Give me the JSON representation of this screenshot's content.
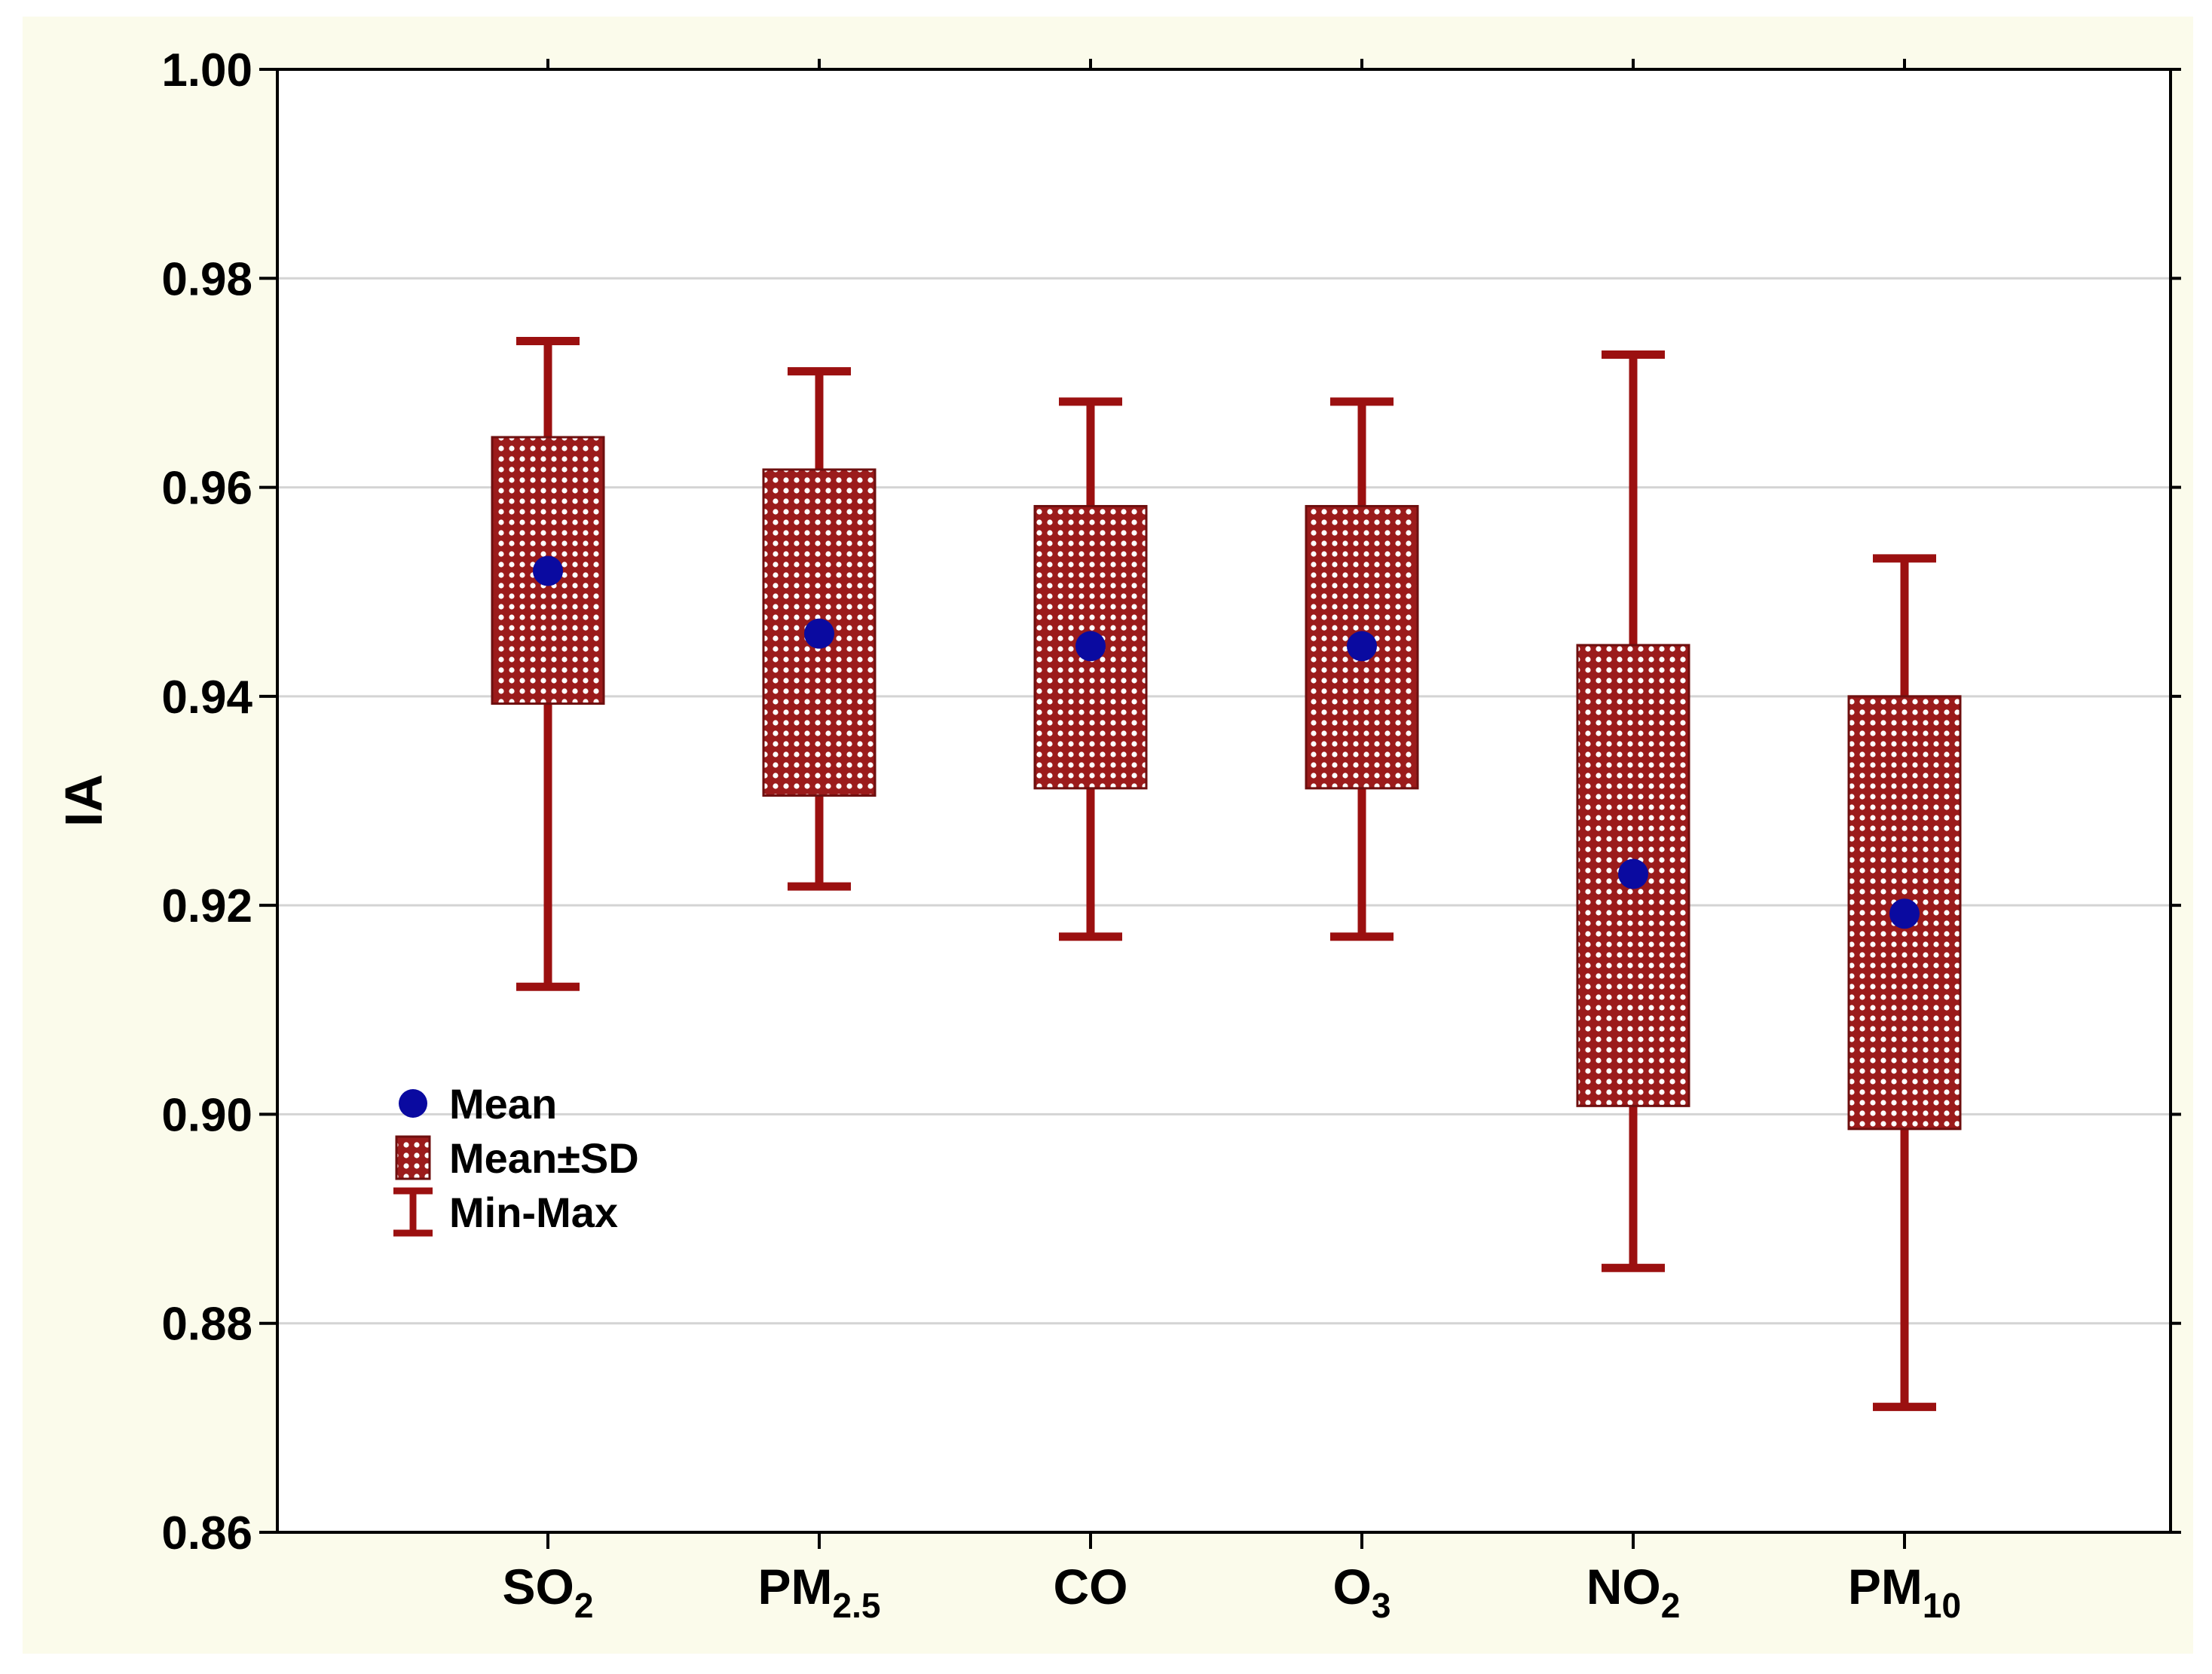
{
  "chart_data": {
    "type": "box",
    "title": "",
    "xlabel": "",
    "ylabel": "IA",
    "ylim": [
      0.86,
      1.0
    ],
    "yticks": [
      "0.86",
      "0.88",
      "0.90",
      "0.92",
      "0.94",
      "0.96",
      "0.98",
      "1.00"
    ],
    "ytick_values": [
      0.86,
      0.88,
      0.9,
      0.92,
      0.94,
      0.96,
      0.98,
      1.0
    ],
    "grid": true,
    "legend_position": "left",
    "categories": [
      {
        "base": "SO",
        "sub": "2"
      },
      {
        "base": "PM",
        "sub": "2.5"
      },
      {
        "base": "CO",
        "sub": ""
      },
      {
        "base": "O",
        "sub": "3"
      },
      {
        "base": "NO",
        "sub": "2"
      },
      {
        "base": "PM",
        "sub": "10"
      }
    ],
    "series": [
      {
        "mean": 0.952,
        "sd_low": 0.9393,
        "sd_high": 0.9648,
        "min": 0.9122,
        "max": 0.974
      },
      {
        "mean": 0.946,
        "sd_low": 0.9305,
        "sd_high": 0.9617,
        "min": 0.9218,
        "max": 0.9711
      },
      {
        "mean": 0.9448,
        "sd_low": 0.9312,
        "sd_high": 0.9582,
        "min": 0.917,
        "max": 0.9682
      },
      {
        "mean": 0.9448,
        "sd_low": 0.9312,
        "sd_high": 0.9582,
        "min": 0.917,
        "max": 0.9682
      },
      {
        "mean": 0.923,
        "sd_low": 0.9008,
        "sd_high": 0.9449,
        "min": 0.8853,
        "max": 0.9727
      },
      {
        "mean": 0.9192,
        "sd_low": 0.8986,
        "sd_high": 0.94,
        "min": 0.872,
        "max": 0.9532
      }
    ],
    "legend": [
      {
        "key": "mean",
        "label": "Mean"
      },
      {
        "key": "box",
        "label": "Mean±SD"
      },
      {
        "key": "whisker",
        "label": "Min-Max"
      }
    ],
    "colors": {
      "background": "#fbfbeb",
      "plot_bg": "#ffffff",
      "box": "#9b1b1b",
      "box_dots": "#ffffff",
      "whisker": "#9b1010",
      "mean": "#0a0aa0",
      "grid": "#d4d4d4",
      "axis": "#000000"
    }
  }
}
